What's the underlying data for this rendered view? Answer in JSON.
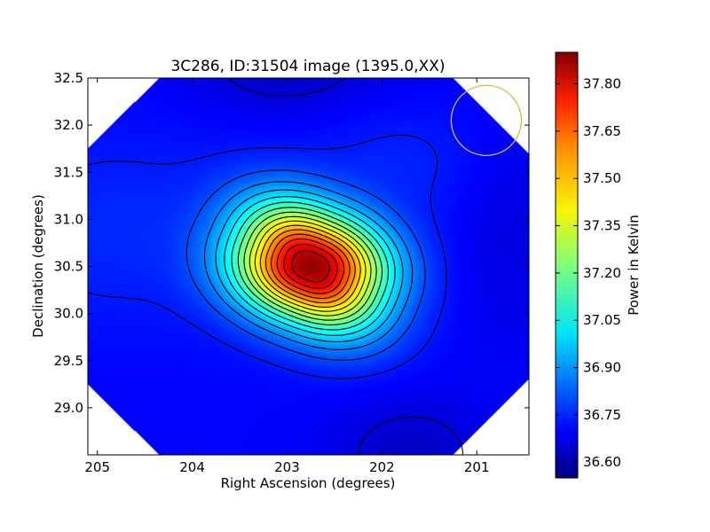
{
  "chart_data": {
    "type": "heatmap",
    "title": "3C286, ID:31504 image (1395.0,XX)",
    "xlabel": "Right Ascension (degrees)",
    "ylabel": "Declination (degrees)",
    "xlim": [
      205.1,
      200.45
    ],
    "ylim": [
      28.5,
      32.5
    ],
    "x_ticks": [
      {
        "value": 205,
        "label": "205"
      },
      {
        "value": 204,
        "label": "204"
      },
      {
        "value": 203,
        "label": "203"
      },
      {
        "value": 202,
        "label": "202"
      },
      {
        "value": 201,
        "label": "201"
      }
    ],
    "y_ticks": [
      {
        "value": 29.0,
        "label": "29.0"
      },
      {
        "value": 29.5,
        "label": "29.5"
      },
      {
        "value": 30.0,
        "label": "30.0"
      },
      {
        "value": 30.5,
        "label": "30.5"
      },
      {
        "value": 31.0,
        "label": "31.0"
      },
      {
        "value": 31.5,
        "label": "31.5"
      },
      {
        "value": 32.0,
        "label": "32.0"
      },
      {
        "value": 32.5,
        "label": "32.5"
      }
    ],
    "source_peak": {
      "ra": 202.75,
      "dec": 30.5,
      "value": 37.87
    },
    "background_level": 36.72,
    "colormap": "jet",
    "colorbar": {
      "label": "Power in Kelvin",
      "vmin": 36.55,
      "vmax": 37.9,
      "ticks": [
        {
          "value": 36.6,
          "label": "36.60"
        },
        {
          "value": 36.75,
          "label": "36.75"
        },
        {
          "value": 36.9,
          "label": "36.90"
        },
        {
          "value": 37.05,
          "label": "37.05"
        },
        {
          "value": 37.2,
          "label": "37.20"
        },
        {
          "value": 37.35,
          "label": "37.35"
        },
        {
          "value": 37.5,
          "label": "37.50"
        },
        {
          "value": 37.65,
          "label": "37.65"
        },
        {
          "value": 37.8,
          "label": "37.80"
        }
      ]
    },
    "beam_marker": {
      "ra": 200.9,
      "dec": 32.05,
      "radius_deg": 0.37,
      "color": "#c8c03a"
    },
    "contour_color": "#000000",
    "grid": false
  }
}
